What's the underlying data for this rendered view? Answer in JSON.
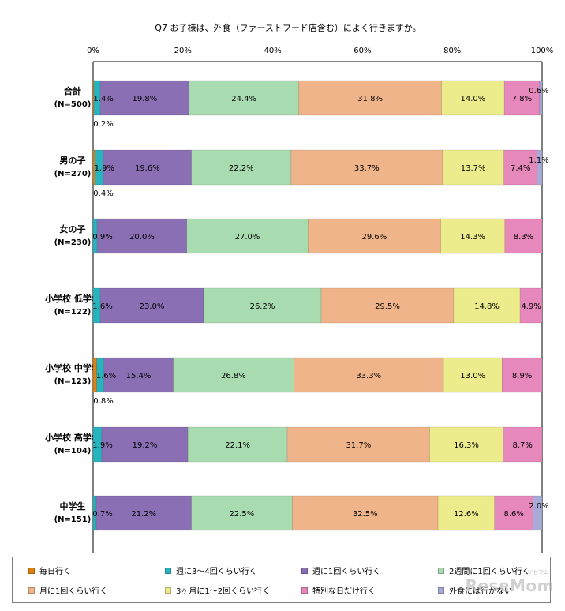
{
  "chart_data": {
    "type": "bar",
    "orientation": "horizontal",
    "stacked": true,
    "title": "Q7 お子様は、外食（ファーストフード店含む）によく行きますか。",
    "xlabel": "",
    "ylabel": "",
    "xlim": [
      0,
      100
    ],
    "x_ticks": [
      "0%",
      "20%",
      "40%",
      "60%",
      "80%",
      "100%"
    ],
    "grid": false,
    "legend_position": "bottom",
    "categories": [
      {
        "label": "合計",
        "n": "(N=500)"
      },
      {
        "label": "男の子",
        "n": "(N=270)"
      },
      {
        "label": "女の子",
        "n": "(N=230)"
      },
      {
        "label": "小学校 低学年",
        "n": "(N=122)"
      },
      {
        "label": "小学校 中学年",
        "n": "(N=123)"
      },
      {
        "label": "小学校 高学年",
        "n": "(N=104)"
      },
      {
        "label": "中学生",
        "n": "(N=151)"
      }
    ],
    "series": [
      {
        "name": "毎日行く",
        "color": "#e0800f",
        "values": [
          0.2,
          0.4,
          0,
          0,
          0.8,
          0,
          0
        ],
        "labels": [
          "0.2%",
          "0.4%",
          "",
          "",
          "0.8%",
          "",
          ""
        ]
      },
      {
        "name": "週に3～4回くらい行く",
        "color": "#28b4be",
        "values": [
          1.4,
          1.9,
          0.9,
          1.6,
          1.6,
          1.9,
          0.7
        ],
        "labels": [
          "1.4%",
          "1.9%",
          "0.9%",
          "1.6%",
          "1.6%",
          "1.9%",
          "0.7%"
        ]
      },
      {
        "name": "週に1回くらい行く",
        "color": "#8b6fb4",
        "values": [
          19.8,
          19.6,
          20.0,
          23.0,
          15.4,
          19.2,
          21.2
        ],
        "labels": [
          "19.8%",
          "19.6%",
          "20.0%",
          "23.0%",
          "15.4%",
          "19.2%",
          "21.2%"
        ]
      },
      {
        "name": "2週間に1回くらい行く",
        "color": "#a8dcb0",
        "values": [
          24.4,
          22.2,
          27.0,
          26.2,
          26.8,
          22.1,
          22.5
        ],
        "labels": [
          "24.4%",
          "22.2%",
          "27.0%",
          "26.2%",
          "26.8%",
          "22.1%",
          "22.5%"
        ]
      },
      {
        "name": "月に1回くらい行く",
        "color": "#f0b48a",
        "values": [
          31.8,
          33.7,
          29.6,
          29.5,
          33.3,
          31.7,
          32.5
        ],
        "labels": [
          "31.8%",
          "33.7%",
          "29.6%",
          "29.5%",
          "33.3%",
          "31.7%",
          "32.5%"
        ]
      },
      {
        "name": "3ヶ月に1～2回くらい行く",
        "color": "#ecec8c",
        "values": [
          14.0,
          13.7,
          14.3,
          14.8,
          13.0,
          16.3,
          12.6
        ],
        "labels": [
          "14.0%",
          "13.7%",
          "14.3%",
          "14.8%",
          "13.0%",
          "16.3%",
          "12.6%"
        ]
      },
      {
        "name": "特別な日だけ行く",
        "color": "#e688bc",
        "values": [
          7.8,
          7.4,
          8.3,
          4.9,
          8.9,
          8.7,
          8.6
        ],
        "labels": [
          "7.8%",
          "7.4%",
          "8.3%",
          "4.9%",
          "8.9%",
          "8.7%",
          "8.6%"
        ]
      },
      {
        "name": "外食には行かない",
        "color": "#a8aad8",
        "values": [
          0.6,
          1.1,
          0,
          0,
          0,
          0,
          2.0
        ],
        "labels": [
          "0.6%",
          "1.1%",
          "",
          "",
          "",
          "",
          "2.0%"
        ]
      }
    ]
  },
  "legend": [
    {
      "name": "毎日行く",
      "color": "#e0800f"
    },
    {
      "name": "週に3～4回くらい行く",
      "color": "#28b4be"
    },
    {
      "name": "週に1回くらい行く",
      "color": "#8b6fb4"
    },
    {
      "name": "2週間に1回くらい行く",
      "color": "#a8dcb0"
    },
    {
      "name": "月に1回くらい行く",
      "color": "#f0b48a"
    },
    {
      "name": "3ヶ月に1～2回くらい行く",
      "color": "#ecec8c"
    },
    {
      "name": "特別な日だけ行く",
      "color": "#e688bc"
    },
    {
      "name": "外食には行かない",
      "color": "#a8aad8"
    }
  ],
  "watermark": {
    "text": "ReseMom",
    "sub": "リセマム"
  }
}
